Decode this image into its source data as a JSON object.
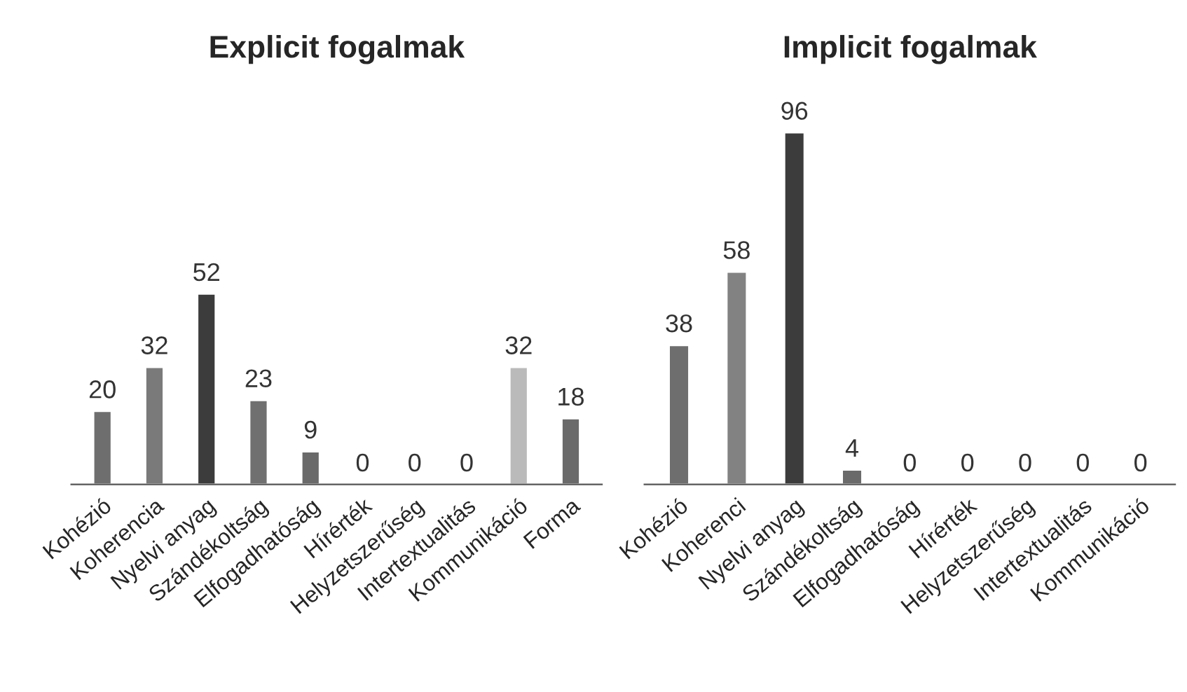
{
  "chart_data": [
    {
      "type": "bar",
      "title": "Explicit fogalmak",
      "data_labels": true,
      "categories": [
        "Kohézió",
        "Koherencia",
        "Nyelvi anyag",
        "Szándékoltság",
        "Elfogadhatóság",
        "Hírérték",
        "Helyzetszerűség",
        "Intertextualitás",
        "Kommunikáció",
        "Forma"
      ],
      "values": [
        20,
        32,
        52,
        23,
        9,
        0,
        0,
        0,
        32,
        18
      ],
      "colors": [
        "#6e6e6e",
        "#7a7a7a",
        "#3c3c3c",
        "#707070",
        "#6a6a6a",
        null,
        null,
        null,
        "#bababa",
        "#6a6a6a"
      ]
    },
    {
      "type": "bar",
      "title": "Implicit fogalmak",
      "data_labels": true,
      "categories": [
        "Kohézió",
        "Koherenci",
        "Nyelvi anyag",
        "Szándékoltság",
        "Elfogadhatóság",
        "Hírérték",
        "Helyzetszerűség",
        "Intertextualitás",
        "Kommunikáció"
      ],
      "values": [
        38,
        58,
        96,
        4,
        0,
        0,
        0,
        0,
        0
      ],
      "colors": [
        "#6e6e6e",
        "#828282",
        "#3c3c3c",
        "#6a6a6a",
        null,
        null,
        null,
        null,
        null
      ]
    }
  ]
}
